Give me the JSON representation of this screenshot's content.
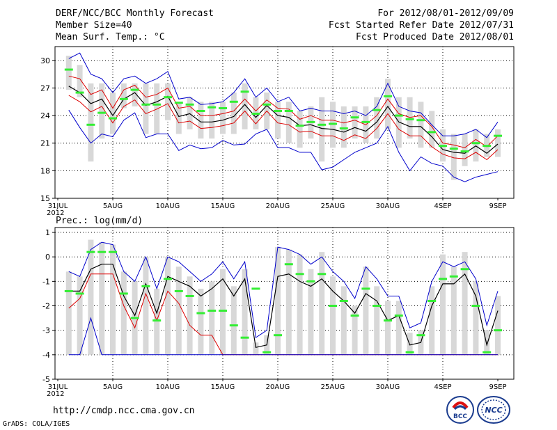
{
  "header": {
    "title": "DERF/NCC/BCC Monthly Forecast",
    "member_size": "Member Size=40",
    "variable": "Mean Surf. Temp.: °C",
    "period": "For 2012/08/01-2012/09/09",
    "started": "Fcst Started Refer Date 2012/07/31",
    "produced": "Fcst Produced Date 2012/08/01"
  },
  "footer": {
    "url": "http://cmdp.ncc.cma.gov.cn",
    "grads": "GrADS: COLA/IGES",
    "logo_bcc": "BCC",
    "logo_ncc": "NCC"
  },
  "colors": {
    "max": "#0000cc",
    "min": "#0000cc",
    "mean": "#000000",
    "spread": "#dd0000",
    "obs": "#33ee33",
    "box": "#d8d8d8"
  },
  "chart_data": [
    {
      "type": "line",
      "title": "Mean Surf. Temp.: °C",
      "ylim": [
        15,
        31.5
      ],
      "yticks": [
        15,
        18,
        21,
        24,
        27,
        30
      ],
      "xlabels": [
        {
          "day": 0,
          "label": "31JUL"
        },
        {
          "day": 5,
          "label": "5AUG"
        },
        {
          "day": 10,
          "label": "10AUG"
        },
        {
          "day": 15,
          "label": "15AUG"
        },
        {
          "day": 20,
          "label": "20AUG"
        },
        {
          "day": 25,
          "label": "25AUG"
        },
        {
          "day": 30,
          "label": "30AUG"
        },
        {
          "day": 35,
          "label": "4SEP"
        },
        {
          "day": 40,
          "label": "9SEP"
        }
      ],
      "year_label": "2012",
      "x": [
        1,
        2,
        3,
        4,
        5,
        6,
        7,
        8,
        9,
        10,
        11,
        12,
        13,
        14,
        15,
        16,
        17,
        18,
        19,
        20,
        21,
        22,
        23,
        24,
        25,
        26,
        27,
        28,
        29,
        30,
        31,
        32,
        33,
        34,
        35,
        36,
        37,
        38,
        39,
        40
      ],
      "series": [
        {
          "name": "max",
          "values": [
            30.2,
            30.8,
            28.5,
            28.0,
            26.5,
            28.0,
            28.3,
            27.5,
            28.0,
            28.8,
            25.8,
            26.0,
            25.2,
            25.3,
            25.5,
            26.5,
            28.0,
            26.0,
            27.0,
            25.5,
            26.0,
            24.5,
            24.8,
            24.5,
            24.5,
            24.2,
            24.5,
            24.0,
            25.0,
            27.5,
            25.0,
            24.5,
            24.3,
            23.0,
            21.8,
            21.8,
            22.0,
            22.5,
            21.6,
            23.3
          ]
        },
        {
          "name": "upper",
          "values": [
            28.3,
            28.0,
            26.3,
            26.8,
            24.8,
            26.8,
            27.3,
            26.0,
            26.3,
            27.0,
            24.8,
            25.0,
            24.0,
            24.0,
            24.2,
            24.5,
            25.8,
            24.5,
            25.7,
            24.8,
            24.7,
            23.6,
            24.0,
            23.5,
            23.5,
            23.2,
            23.5,
            23.0,
            24.0,
            25.8,
            24.2,
            23.8,
            24.0,
            22.8,
            21.0,
            20.8,
            20.5,
            21.4,
            20.6,
            21.8
          ]
        },
        {
          "name": "mean",
          "values": [
            27.2,
            26.5,
            25.3,
            25.8,
            24.0,
            25.8,
            26.5,
            25.1,
            25.5,
            26.1,
            23.9,
            24.2,
            23.3,
            23.3,
            23.5,
            23.9,
            25.2,
            23.8,
            25.1,
            24.0,
            23.8,
            22.9,
            23.0,
            22.6,
            22.5,
            22.2,
            22.7,
            22.3,
            23.3,
            25.0,
            23.3,
            22.8,
            22.8,
            21.7,
            20.3,
            20.0,
            19.9,
            20.7,
            19.9,
            20.9
          ]
        },
        {
          "name": "lower",
          "values": [
            26.2,
            25.5,
            24.4,
            25.0,
            23.2,
            25.0,
            25.7,
            24.2,
            24.7,
            25.3,
            23.2,
            23.4,
            22.6,
            22.7,
            22.9,
            23.2,
            24.5,
            23.1,
            24.5,
            23.2,
            23.0,
            22.2,
            22.3,
            21.8,
            21.8,
            21.3,
            21.9,
            21.5,
            22.6,
            24.2,
            22.5,
            21.8,
            21.8,
            20.6,
            19.8,
            19.4,
            19.3,
            20.0,
            19.2,
            20.3
          ]
        },
        {
          "name": "min",
          "values": [
            24.6,
            22.7,
            21.0,
            22.0,
            21.7,
            23.5,
            24.3,
            21.6,
            22.0,
            22.0,
            20.2,
            20.8,
            20.4,
            20.5,
            21.3,
            20.8,
            20.9,
            22.0,
            22.5,
            20.5,
            20.5,
            20.0,
            20.0,
            18.1,
            18.4,
            19.2,
            20.0,
            20.5,
            21.0,
            22.8,
            20.0,
            18.0,
            19.5,
            18.8,
            18.5,
            17.3,
            16.8,
            17.3,
            17.6,
            17.9
          ]
        },
        {
          "name": "observed",
          "values": [
            29.0,
            26.5,
            23.0,
            24.3,
            23.7,
            25.8,
            26.8,
            25.2,
            25.2,
            26.0,
            25.4,
            25.2,
            24.5,
            24.9,
            24.8,
            25.5,
            26.6,
            24.2,
            25.2,
            24.5,
            24.5,
            22.9,
            23.3,
            23.0,
            23.1,
            22.6,
            23.8,
            23.3,
            24.6,
            26.1,
            24.0,
            23.6,
            23.5,
            22.2,
            20.7,
            20.4,
            20.1,
            21.0,
            20.7,
            21.8
          ]
        }
      ],
      "box_low": [
        26.8,
        26.0,
        19.0,
        21.5,
        22.0,
        24.8,
        25.0,
        22.0,
        22.0,
        23.5,
        22.0,
        22.5,
        21.5,
        21.5,
        22.0,
        22.0,
        22.5,
        22.5,
        22.5,
        21.5,
        21.0,
        20.5,
        21.5,
        19.0,
        20.5,
        20.5,
        21.5,
        21.0,
        21.5,
        22.5,
        20.5,
        21.5,
        20.5,
        20.5,
        19.0,
        17.0,
        18.5,
        19.0,
        19.5,
        19.5
      ],
      "box_high": [
        30.5,
        29.5,
        27.5,
        27.5,
        26.5,
        27.5,
        27.5,
        27.5,
        27.5,
        27.5,
        25.5,
        26.0,
        25.5,
        25.5,
        25.5,
        26.5,
        27.5,
        26.0,
        26.5,
        25.5,
        25.5,
        24.5,
        25.0,
        26.0,
        25.5,
        25.0,
        25.0,
        25.0,
        26.0,
        28.0,
        26.0,
        26.0,
        25.5,
        24.5,
        22.5,
        22.0,
        22.0,
        22.5,
        22.0,
        22.5
      ]
    },
    {
      "type": "line",
      "title": "Prec.: log(mm/d)",
      "ylim": [
        -5,
        1.2
      ],
      "yticks": [
        -5,
        -4,
        -3,
        -2,
        -1,
        0,
        1
      ],
      "xlabels": [
        {
          "day": 0,
          "label": "31JUL"
        },
        {
          "day": 5,
          "label": "5AUG"
        },
        {
          "day": 10,
          "label": "10AUG"
        },
        {
          "day": 15,
          "label": "15AUG"
        },
        {
          "day": 20,
          "label": "20AUG"
        },
        {
          "day": 25,
          "label": "25AUG"
        },
        {
          "day": 30,
          "label": "30AUG"
        },
        {
          "day": 35,
          "label": "4SEP"
        },
        {
          "day": 40,
          "label": "9SEP"
        }
      ],
      "year_label": "2012",
      "x": [
        1,
        2,
        3,
        4,
        5,
        6,
        7,
        8,
        9,
        10,
        11,
        12,
        13,
        14,
        15,
        16,
        17,
        18,
        19,
        20,
        21,
        22,
        23,
        24,
        25,
        26,
        27,
        28,
        29,
        30,
        31,
        32,
        33,
        34,
        35,
        36,
        37,
        38,
        39,
        40
      ],
      "series": [
        {
          "name": "max",
          "values": [
            -0.6,
            -0.8,
            0.3,
            0.6,
            0.5,
            -0.6,
            -1.0,
            0.0,
            -1.3,
            0.0,
            -0.2,
            -0.6,
            -1.0,
            -0.7,
            -0.2,
            -0.9,
            -0.2,
            -3.3,
            -3.0,
            0.4,
            0.3,
            0.1,
            -0.3,
            0.0,
            -0.6,
            -1.0,
            -1.7,
            -0.4,
            -0.9,
            -1.6,
            -1.6,
            -2.9,
            -2.7,
            -1.0,
            -0.2,
            -0.4,
            -0.2,
            -0.9,
            -2.8,
            -1.4
          ]
        },
        {
          "name": "mean",
          "values": [
            -1.4,
            -1.4,
            -0.5,
            -0.3,
            -0.3,
            -1.6,
            -2.4,
            -1.1,
            -2.3,
            -0.8,
            -1.0,
            -1.2,
            -1.6,
            -1.3,
            -0.9,
            -1.6,
            -0.9,
            -3.7,
            -3.6,
            -0.8,
            -0.7,
            -1.0,
            -1.2,
            -0.9,
            -1.4,
            -1.8,
            -2.3,
            -1.5,
            -1.8,
            -2.6,
            -2.4,
            -3.6,
            -3.5,
            -2.0,
            -1.1,
            -1.1,
            -0.7,
            -1.6,
            -3.6,
            -2.2
          ]
        },
        {
          "name": "lower",
          "values": [
            -2.1,
            -1.7,
            -0.7,
            -0.7,
            -0.7,
            -2.0,
            -2.9,
            -1.5,
            -2.6,
            -1.4,
            -1.9,
            -2.8,
            -3.2,
            -3.2,
            -4.0,
            -4.0,
            -4.0,
            -4.0,
            -4.0,
            -4.0,
            -4.0,
            -4.0,
            -4.0,
            -4.0,
            -4.0,
            -4.0,
            -4.0,
            -4.0,
            -4.0,
            -4.0,
            -4.0,
            -4.0,
            -4.0,
            -4.0,
            -4.0,
            -4.0,
            -4.0,
            -4.0,
            -4.0,
            -4.0
          ]
        },
        {
          "name": "min",
          "values": [
            -4.0,
            -4.0,
            -2.5,
            -4.0,
            -4.0,
            -4.0,
            -4.0,
            -4.0,
            -4.0,
            -4.0,
            -4.0,
            -4.0,
            -4.0,
            -4.0,
            -4.0,
            -4.0,
            -4.0,
            -4.0,
            -4.0,
            -4.0,
            -4.0,
            -4.0,
            -4.0,
            -4.0,
            -4.0,
            -4.0,
            -4.0,
            -4.0,
            -4.0,
            -4.0,
            -4.0,
            -4.0,
            -4.0,
            -4.0,
            -4.0,
            -4.0,
            -4.0,
            -4.0,
            -4.0,
            -4.0
          ]
        },
        {
          "name": "observed",
          "values": [
            -1.4,
            -1.5,
            0.2,
            0.2,
            0.2,
            -1.5,
            -2.5,
            -1.2,
            -2.6,
            -0.9,
            -1.4,
            -1.6,
            -2.3,
            -2.2,
            -2.2,
            -2.8,
            -3.3,
            -1.3,
            -3.9,
            -3.2,
            -0.3,
            -0.7,
            -1.0,
            -0.7,
            -2.0,
            -1.8,
            -2.4,
            -1.3,
            -2.0,
            -2.6,
            -2.4,
            -3.9,
            -3.2,
            -1.8,
            -0.9,
            -0.8,
            -0.5,
            -2.0,
            -3.9,
            -3.0
          ]
        }
      ],
      "box_low": [
        -4,
        -4,
        -4,
        -4,
        -4,
        -4,
        -4,
        -4,
        -4,
        -4,
        -4,
        -4,
        -4,
        -4,
        -4,
        -4,
        -4,
        -4,
        -4,
        -4,
        -4,
        -4,
        -4,
        -4,
        -4,
        -4,
        -4,
        -4,
        -4,
        -4,
        -4,
        -4,
        -4,
        -4,
        -4,
        -4,
        -4,
        -4,
        -4,
        -4
      ],
      "box_high": [
        -0.6,
        -0.8,
        0.7,
        0.6,
        0.5,
        -0.6,
        -1.0,
        0.0,
        -1.3,
        0.0,
        -0.4,
        -0.8,
        -1.3,
        -1.0,
        -0.5,
        -1.2,
        -0.5,
        -3.5,
        -3.2,
        0.4,
        0.3,
        0.1,
        -0.5,
        0.2,
        -0.8,
        -1.2,
        -2.0,
        -0.4,
        -1.2,
        -1.8,
        -1.8,
        -3.1,
        -3.0,
        -1.2,
        0.1,
        -0.4,
        0.2,
        -1.0,
        -3.0,
        -1.6
      ]
    }
  ]
}
